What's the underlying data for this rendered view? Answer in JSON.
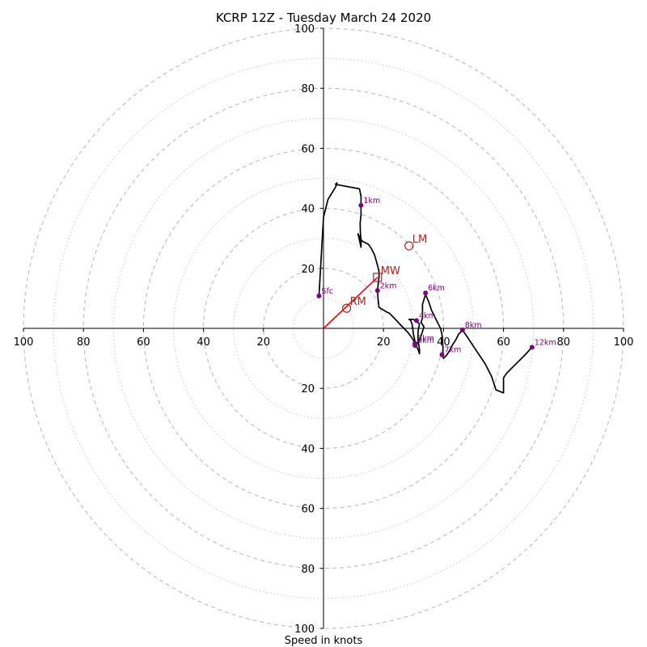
{
  "chart_data": {
    "type": "scatter",
    "title": "KCRP 12Z - Tuesday March 24 2020",
    "xlabel": "Speed in knots",
    "ylabel": "",
    "xlim": [
      -100,
      100
    ],
    "ylim": [
      -100,
      100
    ],
    "x_tick_labels": [
      "100",
      "80",
      "60",
      "40",
      "20",
      "20",
      "40",
      "60",
      "80",
      "100"
    ],
    "y_tick_labels": [
      "100",
      "80",
      "60",
      "40",
      "20",
      "20",
      "40",
      "60",
      "80",
      "100"
    ],
    "dashed_rings": [
      20,
      40,
      60,
      80,
      100
    ],
    "dotted_rings": [
      10,
      30,
      50,
      70,
      90
    ],
    "hodograph_line": {
      "color": "#000000",
      "points": [
        [
          -1.5,
          10.8
        ],
        [
          0,
          37
        ],
        [
          1.5,
          43
        ],
        [
          4,
          47
        ],
        [
          4.5,
          48.5
        ],
        [
          4,
          48
        ],
        [
          12,
          46.5
        ],
        [
          12.5,
          44
        ],
        [
          12.5,
          41
        ],
        [
          12.5,
          38
        ],
        [
          12.2,
          35
        ],
        [
          12.3,
          32
        ],
        [
          12.5,
          29
        ],
        [
          12.5,
          27
        ],
        [
          11.5,
          31.5
        ],
        [
          12.2,
          30
        ],
        [
          13,
          29
        ],
        [
          15,
          28
        ],
        [
          16,
          26.5
        ],
        [
          17,
          24.5
        ],
        [
          18,
          21
        ],
        [
          18.5,
          19
        ],
        [
          18.5,
          17
        ],
        [
          18,
          12.6
        ],
        [
          18.2,
          9.6
        ],
        [
          18.5,
          7
        ],
        [
          21,
          5.5
        ],
        [
          22,
          5
        ],
        [
          24,
          3
        ],
        [
          26,
          0.8
        ],
        [
          28,
          -1.2
        ],
        [
          29,
          -2.5
        ],
        [
          30,
          -4
        ],
        [
          30.5,
          -5.5
        ],
        [
          31,
          -6
        ],
        [
          31.5,
          -7
        ],
        [
          32,
          -8.5
        ],
        [
          32,
          -7
        ],
        [
          31.5,
          -4
        ],
        [
          31.5,
          -1
        ],
        [
          32,
          1.5
        ],
        [
          30,
          3
        ],
        [
          28.5,
          3
        ],
        [
          29,
          2.7
        ],
        [
          29.5,
          1.5
        ],
        [
          30,
          -2
        ],
        [
          30.5,
          -4.5
        ],
        [
          31,
          -5.5
        ],
        [
          32,
          -4
        ],
        [
          32.5,
          -2.5
        ],
        [
          33,
          -1
        ],
        [
          33.5,
          0.5
        ],
        [
          32.5,
          2
        ],
        [
          33,
          3.5
        ],
        [
          33,
          5
        ],
        [
          33,
          8
        ],
        [
          34,
          11.3
        ],
        [
          35,
          9
        ],
        [
          36,
          6
        ],
        [
          37,
          4
        ],
        [
          38,
          2
        ],
        [
          39,
          0
        ],
        [
          39.5,
          -2
        ],
        [
          39.8,
          -6
        ],
        [
          39.8,
          -8.5
        ],
        [
          40,
          -10
        ],
        [
          41,
          -9
        ],
        [
          42,
          -7.5
        ],
        [
          43,
          -5.5
        ],
        [
          44,
          -4
        ],
        [
          45,
          -2
        ],
        [
          46.3,
          -0.5
        ],
        [
          48,
          -3
        ],
        [
          50,
          -6
        ],
        [
          52,
          -9
        ],
        [
          54,
          -12
        ],
        [
          55,
          -14
        ],
        [
          56,
          -16
        ],
        [
          57,
          -19
        ],
        [
          57.5,
          -20.5
        ],
        [
          60,
          -21.5
        ],
        [
          60,
          -16.5
        ],
        [
          61,
          -15
        ],
        [
          63,
          -13
        ],
        [
          64.5,
          -11.5
        ],
        [
          67,
          -9
        ],
        [
          69.5,
          -6.3
        ]
      ]
    },
    "height_markers": [
      {
        "label": "Sfc",
        "u": -1.5,
        "v": 10.8
      },
      {
        "label": "1km",
        "u": 12.5,
        "v": 41
      },
      {
        "label": "2km",
        "u": 18,
        "v": 12.6
      },
      {
        "label": "3km",
        "u": 30.5,
        "v": -5
      },
      {
        "label": "4km",
        "u": 31,
        "v": 2.6
      },
      {
        "label": "5km",
        "u": 30.5,
        "v": -5.7
      },
      {
        "label": "6km",
        "u": 34,
        "v": 11.8
      },
      {
        "label": "7km",
        "u": 39.5,
        "v": -8.8
      },
      {
        "label": "8km",
        "u": 46.3,
        "v": -0.5
      },
      {
        "label": "12km",
        "u": 69.5,
        "v": -6.3
      }
    ],
    "marker_color": "#800080",
    "motion_markers": [
      {
        "label": "LM",
        "u": 28.5,
        "v": 27.5,
        "shape": "circle"
      },
      {
        "label": "MW",
        "u": 18,
        "v": 17,
        "shape": "square"
      },
      {
        "label": "RM",
        "u": 7.7,
        "v": 6.7,
        "shape": "circle"
      }
    ],
    "motion_color": "#b22222",
    "storm_vector": {
      "from": [
        0,
        0
      ],
      "to": [
        18,
        17
      ],
      "color": "#ff0000"
    },
    "grid": true
  }
}
